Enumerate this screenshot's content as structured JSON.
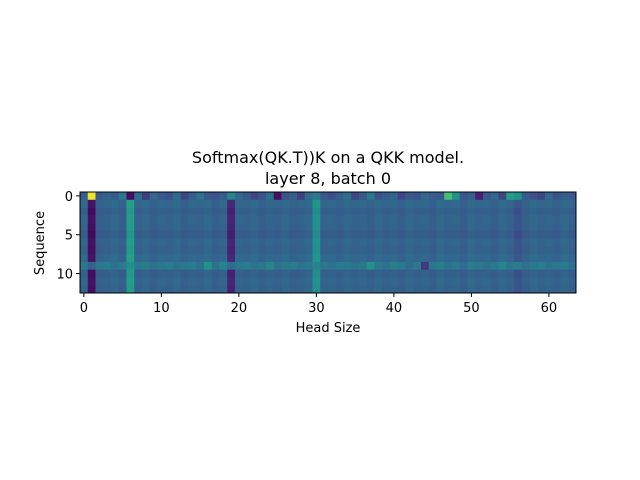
{
  "chart_data": {
    "type": "heatmap",
    "title_lines": [
      "Softmax(QK.T))K on a QKK model.",
      "layer 8, batch 0"
    ],
    "xlabel": "Head Size",
    "ylabel": "Sequence",
    "xlim": [
      -0.5,
      63.5
    ],
    "ylim": [
      12.5,
      -0.5
    ],
    "xticks": [
      0,
      10,
      20,
      30,
      40,
      50,
      60
    ],
    "yticks": [
      0,
      5,
      10
    ],
    "colormap": "viridis",
    "vmin": 0,
    "vmax": 1,
    "n_rows": 13,
    "n_cols": 64,
    "base_row": [
      0.32,
      0.05,
      0.3,
      0.31,
      0.33,
      0.3,
      0.55,
      0.31,
      0.33,
      0.3,
      0.32,
      0.31,
      0.33,
      0.3,
      0.32,
      0.31,
      0.33,
      0.3,
      0.32,
      0.12,
      0.32,
      0.31,
      0.33,
      0.3,
      0.32,
      0.31,
      0.33,
      0.3,
      0.31,
      0.33,
      0.5,
      0.31,
      0.32,
      0.3,
      0.33,
      0.31,
      0.32,
      0.3,
      0.33,
      0.31,
      0.32,
      0.3,
      0.33,
      0.31,
      0.32,
      0.3,
      0.33,
      0.31,
      0.32,
      0.3,
      0.33,
      0.31,
      0.32,
      0.3,
      0.33,
      0.31,
      0.25,
      0.3,
      0.33,
      0.31,
      0.32,
      0.3,
      0.33,
      0.31
    ],
    "row0": [
      0.3,
      0.98,
      0.28,
      0.32,
      0.29,
      0.4,
      0.05,
      0.35,
      0.2,
      0.33,
      0.28,
      0.25,
      0.35,
      0.22,
      0.3,
      0.38,
      0.27,
      0.26,
      0.3,
      0.45,
      0.33,
      0.28,
      0.22,
      0.26,
      0.35,
      0.06,
      0.25,
      0.3,
      0.2,
      0.35,
      0.4,
      0.28,
      0.24,
      0.3,
      0.36,
      0.22,
      0.28,
      0.4,
      0.25,
      0.3,
      0.33,
      0.22,
      0.28,
      0.26,
      0.34,
      0.3,
      0.28,
      0.7,
      0.5,
      0.27,
      0.3,
      0.12,
      0.28,
      0.33,
      0.22,
      0.55,
      0.5,
      0.3,
      0.25,
      0.22,
      0.34,
      0.26,
      0.3,
      0.28
    ],
    "row9": [
      0.4,
      0.32,
      0.4,
      0.42,
      0.38,
      0.4,
      0.5,
      0.4,
      0.42,
      0.38,
      0.4,
      0.42,
      0.38,
      0.4,
      0.42,
      0.38,
      0.5,
      0.38,
      0.45,
      0.36,
      0.4,
      0.42,
      0.38,
      0.4,
      0.45,
      0.38,
      0.4,
      0.42,
      0.38,
      0.4,
      0.45,
      0.4,
      0.38,
      0.42,
      0.4,
      0.38,
      0.4,
      0.5,
      0.4,
      0.38,
      0.42,
      0.4,
      0.36,
      0.4,
      0.18,
      0.4,
      0.42,
      0.38,
      0.4,
      0.36,
      0.42,
      0.4,
      0.38,
      0.4,
      0.45,
      0.4,
      0.42,
      0.38,
      0.4,
      0.42,
      0.38,
      0.4,
      0.42,
      0.38
    ],
    "row_offsets": [
      0,
      0.02,
      -0.01,
      0.01,
      0.0,
      -0.02,
      0.01,
      0.0,
      0.02,
      0,
      -0.01,
      0.01,
      0.0
    ]
  }
}
